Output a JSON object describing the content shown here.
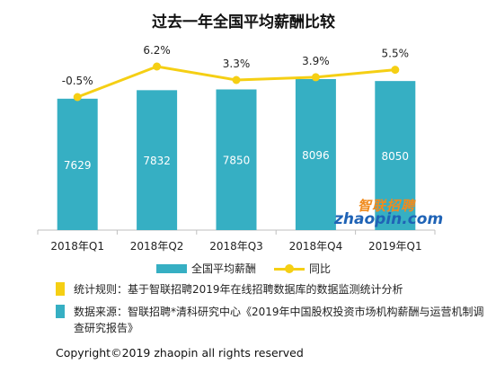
{
  "title": "过去一年全国平均薪酬比较",
  "chart_data": {
    "type": "bar",
    "categories": [
      "2018年Q1",
      "2018年Q2",
      "2018年Q3",
      "2018年Q4",
      "2019年Q1"
    ],
    "series": [
      {
        "name": "全国平均薪酬",
        "type": "bar",
        "values": [
          7629,
          7832,
          7850,
          8096,
          8050
        ],
        "color": "#36afc3"
      },
      {
        "name": "同比",
        "type": "line",
        "values": [
          -0.5,
          6.2,
          3.3,
          3.9,
          5.5
        ],
        "labels": [
          "-0.5%",
          "6.2%",
          "3.3%",
          "3.9%",
          "5.5%"
        ],
        "color": "#f5cf14"
      }
    ],
    "legend": "bottom"
  },
  "legend": {
    "bar_label": "全国平均薪酬",
    "line_label": "同比"
  },
  "notes": [
    {
      "text": "统计规则：基于智联招聘2019年在线招聘数据库的数据监测统计分析",
      "color": "#f5cf14"
    },
    {
      "text": "数据来源：智联招聘*清科研究中心《2019年中国股权投资市场机构薪酬与运营机制调查研究报告》",
      "color": "#36afc3"
    }
  ],
  "watermark": {
    "cn": "智联招聘",
    "en": "zhaopin.com"
  },
  "copyright": "Copyright©2019 zhaopin all rights reserved"
}
